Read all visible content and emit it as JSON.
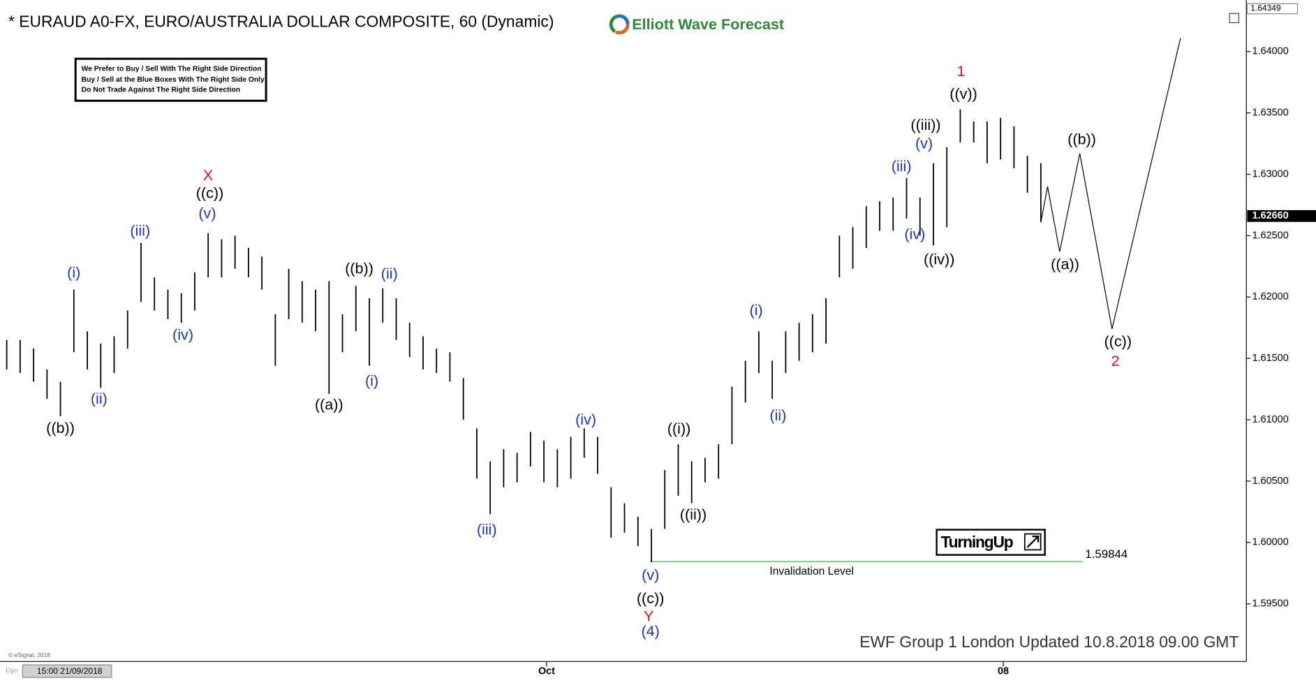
{
  "title": "* EURAUD A0-FX, EURO/AUSTRALIA DOLLAR COMPOSITE, 60 (Dynamic)",
  "logo": "Elliott Wave Forecast",
  "note_box": [
    "We Prefer to Buy / Sell With The Right Side Direction",
    "Buy / Sell at the Blue Boxes With The Right Side Only",
    "Do Not Trade Against The Right Side Direction"
  ],
  "badge": "TurningUp",
  "footer": "EWF Group 1 London Updated 10.8.2018 09.00 GMT",
  "copyright": "© eSignal, 2018",
  "cursor_tag": "Dyn",
  "cursor_time": "15:00 21/09/2018",
  "chart_data": {
    "type": "ohlc",
    "x": [
      0,
      1,
      2,
      3,
      4,
      5,
      6,
      7,
      8,
      9,
      10,
      11,
      12,
      13,
      14,
      15,
      16,
      17,
      18,
      19,
      20,
      21,
      22,
      23,
      24,
      25,
      26,
      27,
      28,
      29,
      30,
      31,
      32,
      33,
      34,
      35,
      36,
      37,
      38,
      39,
      40,
      41,
      42,
      43,
      44,
      45,
      46,
      47,
      48,
      49,
      50,
      51,
      52,
      53,
      54,
      55,
      56,
      57,
      58,
      59,
      60,
      61,
      62,
      63,
      64,
      65,
      66,
      67,
      68,
      69,
      70,
      71,
      72,
      73,
      74,
      75,
      76,
      77
    ],
    "high": [
      1.6165,
      1.6165,
      1.6158,
      1.6141,
      1.6131,
      1.6206,
      1.6172,
      1.6162,
      1.6168,
      1.6189,
      1.6244,
      1.6216,
      1.6206,
      1.6203,
      1.622,
      1.6252,
      1.6247,
      1.625,
      1.624,
      1.6233,
      1.6186,
      1.6223,
      1.6213,
      1.6206,
      1.6213,
      1.6186,
      1.6209,
      1.6199,
      1.6207,
      1.6199,
      1.6179,
      1.6168,
      1.6158,
      1.6155,
      1.6134,
      1.6093,
      1.6066,
      1.6076,
      1.6073,
      1.609,
      1.6083,
      1.6076,
      1.6086,
      1.6093,
      1.6086,
      1.6045,
      1.6032,
      1.6021,
      1.6011,
      1.6059,
      1.608,
      1.6066,
      1.6069,
      1.608,
      1.6127,
      1.6148,
      1.6172,
      1.6148,
      1.6172,
      1.6179,
      1.6186,
      1.6199,
      1.625,
      1.6257,
      1.6274,
      1.6278,
      1.6281,
      1.6297,
      1.6281,
      1.6309,
      1.6322,
      1.6353,
      1.6343,
      1.6343,
      1.6346,
      1.6339,
      1.6315,
      1.6309
    ],
    "low": [
      1.6141,
      1.6138,
      1.6131,
      1.6117,
      1.6103,
      1.6155,
      1.6141,
      1.6126,
      1.6138,
      1.6158,
      1.6196,
      1.6189,
      1.6182,
      1.6179,
      1.6189,
      1.6216,
      1.6216,
      1.6223,
      1.6216,
      1.6206,
      1.6144,
      1.6182,
      1.6179,
      1.6172,
      1.6121,
      1.6155,
      1.6172,
      1.6144,
      1.6179,
      1.6165,
      1.6151,
      1.6141,
      1.6138,
      1.6131,
      1.61,
      1.6052,
      1.6023,
      1.6045,
      1.6049,
      1.6062,
      1.6049,
      1.6045,
      1.6052,
      1.6069,
      1.6056,
      1.6004,
      1.6008,
      1.5997,
      1.5984,
      1.6011,
      1.6038,
      1.6032,
      1.6049,
      1.6052,
      1.608,
      1.6114,
      1.6138,
      1.6117,
      1.6138,
      1.6148,
      1.6155,
      1.6162,
      1.6216,
      1.6223,
      1.624,
      1.6254,
      1.6254,
      1.6264,
      1.625,
      1.6242,
      1.6257,
      1.6326,
      1.6326,
      1.6309,
      1.6312,
      1.6305,
      1.6285,
      1.6261
    ],
    "color": "#000000",
    "projection": {
      "x": [
        77,
        77.5,
        78.4,
        79.9,
        82.3,
        87.4
      ],
      "y": [
        1.6261,
        1.629,
        1.6237,
        1.6317,
        1.6174,
        1.6411
      ],
      "color": "#000000"
    },
    "invalidation": {
      "value": 1.59844,
      "label": "Invalidation  Level",
      "color": "#33cc33"
    },
    "last_price": {
      "value": 1.6266,
      "label": "1.62660"
    },
    "high_price": {
      "value": 1.64349,
      "label": "1.64349"
    },
    "xlim": [
      -0.5,
      92.3
    ],
    "ylim": [
      1.5903,
      1.6442
    ],
    "xticks": [
      {
        "value": 40.2,
        "label": "Oct"
      },
      {
        "value": 74.2,
        "label": "08"
      }
    ],
    "yticks": [
      {
        "value": 1.595,
        "label": "1.59500"
      },
      {
        "value": 1.6,
        "label": "1.60000"
      },
      {
        "value": 1.605,
        "label": "1.60500"
      },
      {
        "value": 1.61,
        "label": "1.61000"
      },
      {
        "value": 1.615,
        "label": "1.61500"
      },
      {
        "value": 1.62,
        "label": "1.62000"
      },
      {
        "value": 1.625,
        "label": "1.62500"
      },
      {
        "value": 1.63,
        "label": "1.63000"
      },
      {
        "value": 1.635,
        "label": "1.63500"
      },
      {
        "value": 1.64,
        "label": "1.64000"
      }
    ],
    "annotations": [
      {
        "text": "((b))",
        "color": "#000000"
      },
      {
        "text": "(i)",
        "color": "#1a35c0"
      },
      {
        "text": "(ii)",
        "color": "#1a35c0"
      },
      {
        "text": "(iii)",
        "color": "#1a35c0"
      },
      {
        "text": "(iv)",
        "color": "#1a35c0"
      },
      {
        "text": "(v)",
        "color": "#1a35c0"
      },
      {
        "text": "((c))",
        "color": "#000000"
      },
      {
        "text": "X",
        "color": "#e01010"
      },
      {
        "text": "((a))",
        "color": "#000000"
      },
      {
        "text": "((b))",
        "color": "#000000"
      },
      {
        "text": "(ii)",
        "color": "#1a35c0"
      },
      {
        "text": "(i)",
        "color": "#1a35c0"
      },
      {
        "text": "(iii)",
        "color": "#1a35c0"
      },
      {
        "text": "(iv)",
        "color": "#1a35c0"
      },
      {
        "text": "(v)",
        "color": "#1a35c0"
      },
      {
        "text": "((c))",
        "color": "#000000"
      },
      {
        "text": "Y",
        "color": "#e01010"
      },
      {
        "text": "(4)",
        "color": "#1a35c0"
      },
      {
        "text": "((i))",
        "color": "#000000"
      },
      {
        "text": "((ii))",
        "color": "#000000"
      },
      {
        "text": "(i)",
        "color": "#1a35c0"
      },
      {
        "text": "(ii)",
        "color": "#1a35c0"
      },
      {
        "text": "(iii)",
        "color": "#1a35c0"
      },
      {
        "text": "(iv)",
        "color": "#1a35c0"
      },
      {
        "text": "((iv))",
        "color": "#000000"
      },
      {
        "text": "(v)",
        "color": "#1a35c0"
      },
      {
        "text": "((iii))",
        "color": "#000000"
      },
      {
        "text": "((v))",
        "color": "#000000"
      },
      {
        "text": "1",
        "color": "#e01010"
      },
      {
        "text": "((b))",
        "color": "#000000"
      },
      {
        "text": "((a))",
        "color": "#000000"
      },
      {
        "text": "((c))",
        "color": "#000000"
      },
      {
        "text": "2",
        "color": "#e01010"
      }
    ]
  }
}
